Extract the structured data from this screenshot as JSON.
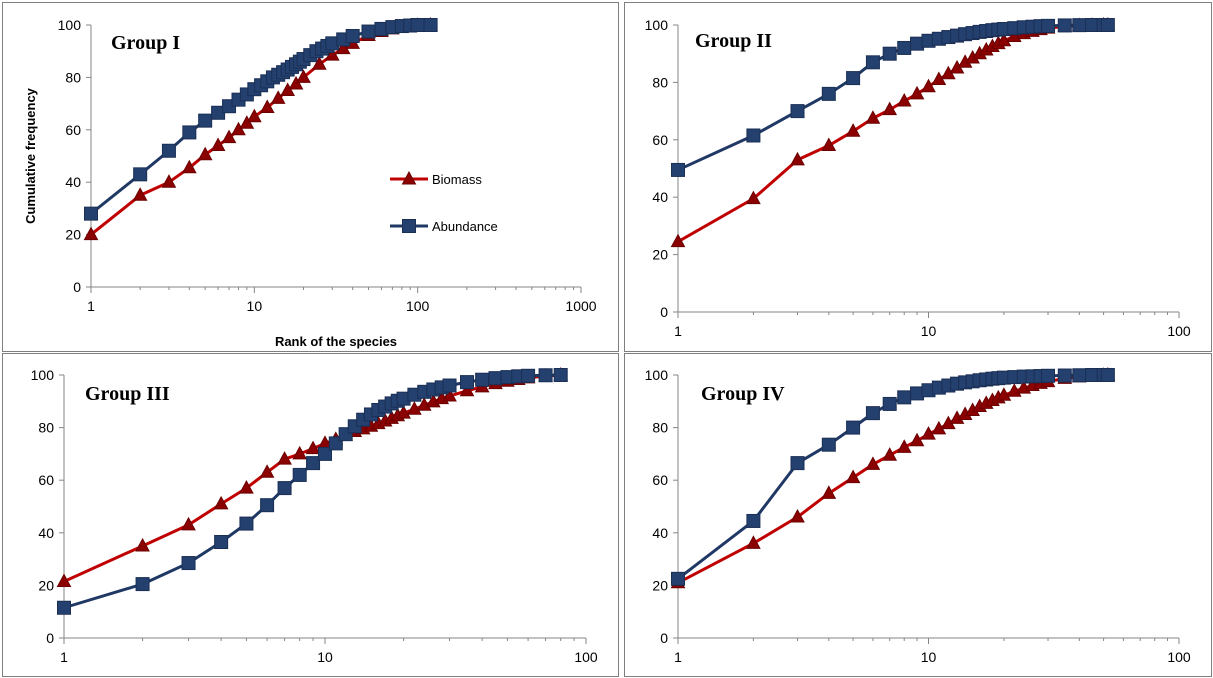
{
  "chart_data": [
    {
      "type": "line",
      "title": "Group I",
      "xlabel": "Rank of the species",
      "ylabel": "Cumulative frequency",
      "xscale": "log",
      "xlim": [
        1,
        1000
      ],
      "ylim": [
        0,
        100
      ],
      "xticks": [
        "1",
        "10",
        "100",
        "1000"
      ],
      "yticks": [
        "0",
        "20",
        "40",
        "60",
        "80",
        "100"
      ],
      "legend": "center-right",
      "series": [
        {
          "name": "Biomass",
          "color": "#c00000",
          "marker": "triangle",
          "marker_color": "#8b0000",
          "x": [
            1,
            2,
            3,
            4,
            5,
            6,
            7,
            8,
            9,
            10,
            12,
            14,
            16,
            18,
            20,
            25,
            30,
            35,
            40,
            50,
            60,
            70,
            80,
            90,
            100,
            120
          ],
          "y": [
            20,
            35,
            40,
            45.5,
            50.5,
            54,
            57,
            60,
            62.5,
            65,
            68.5,
            72,
            75,
            77.5,
            80,
            85,
            88.5,
            91,
            93,
            96,
            97.5,
            98.5,
            99.2,
            99.6,
            99.9,
            100
          ]
        },
        {
          "name": "Abundance",
          "color": "#1f3864",
          "marker": "square",
          "marker_color": "#23406e",
          "x": [
            1,
            2,
            3,
            4,
            5,
            6,
            7,
            8,
            9,
            10,
            11,
            12,
            13,
            14,
            15,
            16,
            17,
            18,
            19,
            20,
            22,
            24,
            26,
            28,
            30,
            35,
            40,
            50,
            60,
            70,
            80,
            90,
            100,
            120
          ],
          "y": [
            28,
            43,
            52,
            59,
            63.5,
            66.5,
            69,
            71.5,
            73.5,
            75.5,
            77,
            78.5,
            80,
            81,
            82,
            83,
            84,
            85,
            86,
            87,
            88.5,
            90,
            91,
            92,
            93,
            94.5,
            95.8,
            97.5,
            98.5,
            99.2,
            99.6,
            99.8,
            100,
            100
          ]
        }
      ]
    },
    {
      "type": "line",
      "title": "Group II",
      "xscale": "log",
      "xlim": [
        1,
        100
      ],
      "ylim": [
        0,
        100
      ],
      "xticks": [
        "1",
        "10",
        "100"
      ],
      "yticks": [
        "0",
        "20",
        "40",
        "60",
        "80",
        "100"
      ],
      "series": [
        {
          "name": "Biomass",
          "color": "#c00000",
          "marker": "triangle",
          "marker_color": "#8b0000",
          "x": [
            1,
            2,
            3,
            4,
            5,
            6,
            7,
            8,
            9,
            10,
            11,
            12,
            13,
            14,
            15,
            16,
            17,
            18,
            19,
            20,
            22,
            24,
            26,
            28,
            30,
            35,
            40,
            45,
            50,
            52
          ],
          "y": [
            24.5,
            39.5,
            53,
            58,
            63,
            67.5,
            70.5,
            73.5,
            76,
            78.5,
            81,
            83,
            85,
            87,
            88.5,
            90,
            91.3,
            92.5,
            93.5,
            94.5,
            96,
            97,
            97.8,
            98.4,
            98.9,
            99.5,
            99.8,
            99.9,
            100,
            100
          ]
        },
        {
          "name": "Abundance",
          "color": "#1f3864",
          "marker": "square",
          "marker_color": "#23406e",
          "x": [
            1,
            2,
            3,
            4,
            5,
            6,
            7,
            8,
            9,
            10,
            11,
            12,
            13,
            14,
            15,
            16,
            17,
            18,
            19,
            20,
            22,
            24,
            26,
            28,
            30,
            35,
            40,
            45,
            50,
            52
          ],
          "y": [
            49.5,
            61.5,
            70,
            76,
            81.5,
            87,
            90,
            92,
            93.5,
            94.5,
            95.2,
            95.8,
            96.3,
            96.8,
            97.2,
            97.6,
            97.9,
            98.2,
            98.4,
            98.6,
            98.9,
            99.2,
            99.4,
            99.6,
            99.7,
            99.85,
            99.95,
            100,
            100,
            100
          ]
        }
      ]
    },
    {
      "type": "line",
      "title": "Group III",
      "xscale": "log",
      "xlim": [
        1,
        100
      ],
      "ylim": [
        0,
        100
      ],
      "xticks": [
        "1",
        "10",
        "100"
      ],
      "yticks": [
        "0",
        "20",
        "40",
        "60",
        "80",
        "100"
      ],
      "series": [
        {
          "name": "Biomass",
          "color": "#c00000",
          "marker": "triangle",
          "marker_color": "#8b0000",
          "x": [
            1,
            2,
            3,
            4,
            5,
            6,
            7,
            8,
            9,
            10,
            11,
            12,
            13,
            14,
            15,
            16,
            17,
            18,
            19,
            20,
            22,
            24,
            26,
            28,
            30,
            35,
            40,
            45,
            50,
            55,
            60,
            70,
            80
          ],
          "y": [
            21.5,
            35,
            43,
            51,
            57,
            63,
            68,
            70,
            72,
            74,
            75.5,
            77,
            78.5,
            79.5,
            80.5,
            81.5,
            82.5,
            83.5,
            84.5,
            85.5,
            87,
            88.5,
            89.8,
            91,
            92,
            94,
            95.5,
            96.7,
            97.6,
            98.3,
            98.9,
            99.6,
            100
          ]
        },
        {
          "name": "Abundance",
          "color": "#1f3864",
          "marker": "square",
          "marker_color": "#23406e",
          "x": [
            1,
            2,
            3,
            4,
            5,
            6,
            7,
            8,
            9,
            10,
            11,
            12,
            13,
            14,
            15,
            16,
            17,
            18,
            19,
            20,
            22,
            24,
            26,
            28,
            30,
            35,
            40,
            45,
            50,
            55,
            60,
            70,
            80
          ],
          "y": [
            11.5,
            20.5,
            28.5,
            36.5,
            43.5,
            50.5,
            57,
            62,
            66.5,
            70,
            74,
            77.5,
            80.5,
            83,
            85,
            86.7,
            88,
            89.2,
            90.2,
            91,
            92.5,
            93.6,
            94.5,
            95.3,
            96,
            97.3,
            98.2,
            98.8,
            99.2,
            99.5,
            99.7,
            99.9,
            100
          ]
        }
      ]
    },
    {
      "type": "line",
      "title": "Group IV",
      "xscale": "log",
      "xlim": [
        1,
        100
      ],
      "ylim": [
        0,
        100
      ],
      "xticks": [
        "1",
        "10",
        "100"
      ],
      "yticks": [
        "0",
        "20",
        "40",
        "60",
        "80",
        "100"
      ],
      "series": [
        {
          "name": "Biomass",
          "color": "#c00000",
          "marker": "triangle",
          "marker_color": "#8b0000",
          "x": [
            1,
            2,
            3,
            4,
            5,
            6,
            7,
            8,
            9,
            10,
            11,
            12,
            13,
            14,
            15,
            16,
            17,
            18,
            19,
            20,
            22,
            24,
            26,
            28,
            30,
            35,
            40,
            45,
            50,
            52
          ],
          "y": [
            21,
            36,
            46,
            55,
            61,
            66,
            69.5,
            72.5,
            75,
            77.5,
            79.5,
            81.5,
            83.5,
            85,
            86.5,
            88,
            89.2,
            90.3,
            91.3,
            92.3,
            93.8,
            95,
            96,
            96.8,
            97.5,
            98.7,
            99.3,
            99.7,
            99.9,
            100
          ]
        },
        {
          "name": "Abundance",
          "color": "#1f3864",
          "marker": "square",
          "marker_color": "#23406e",
          "x": [
            1,
            2,
            3,
            4,
            5,
            6,
            7,
            8,
            9,
            10,
            11,
            12,
            13,
            14,
            15,
            16,
            17,
            18,
            19,
            20,
            22,
            24,
            26,
            28,
            30,
            35,
            40,
            45,
            50,
            52
          ],
          "y": [
            22.5,
            44.5,
            66.5,
            73.5,
            80,
            85.5,
            89,
            91.5,
            93,
            94.2,
            95.2,
            96,
            96.7,
            97.2,
            97.6,
            98,
            98.3,
            98.6,
            98.8,
            99,
            99.2,
            99.4,
            99.5,
            99.6,
            99.7,
            99.8,
            99.9,
            100,
            100,
            100
          ]
        }
      ]
    }
  ]
}
